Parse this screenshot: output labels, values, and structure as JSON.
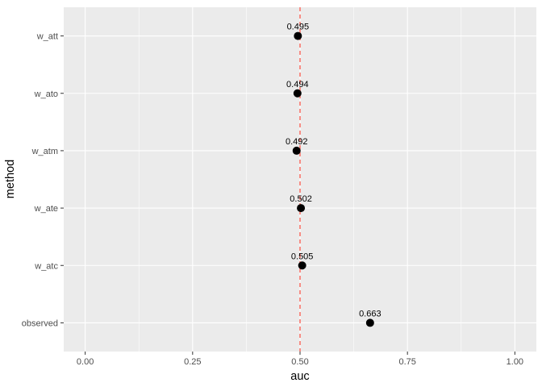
{
  "chart_data": {
    "type": "scatter",
    "title": "",
    "xlabel": "auc",
    "ylabel": "method",
    "xlim": [
      -0.05,
      1.05
    ],
    "x_ticks": [
      "0.00",
      "0.25",
      "0.50",
      "0.75",
      "1.00"
    ],
    "x_tick_values": [
      0,
      0.25,
      0.5,
      0.75,
      1.0
    ],
    "categories": [
      "observed",
      "w_atc",
      "w_ate",
      "w_atm",
      "w_ato",
      "w_att"
    ],
    "values": [
      0.663,
      0.505,
      0.502,
      0.492,
      0.494,
      0.495
    ],
    "labels": [
      "0.663",
      "0.505",
      "0.502",
      "0.492",
      "0.494",
      "0.495"
    ],
    "reference_line": {
      "x": 0.5,
      "style": "dashed",
      "color": "#F8766D"
    },
    "grid": true,
    "legend": "none",
    "colors": {
      "panel": "#EBEBEB",
      "gridline": "#FFFFFF",
      "point": "#000000",
      "text": "#000000",
      "axis_text": "#4D4D4D",
      "tick": "#333333"
    }
  }
}
